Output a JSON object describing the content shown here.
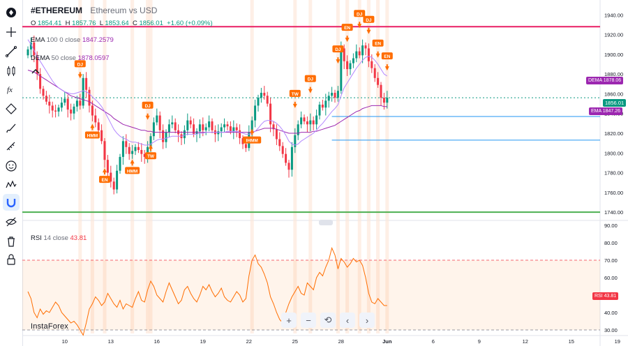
{
  "header": {
    "symbol": "#ETHEREUM",
    "description": "Ethereum vs USD",
    "open_label": "O",
    "open": "1854.41",
    "high_label": "H",
    "high": "1857.76",
    "low_label": "L",
    "low": "1853.64",
    "close_label": "C",
    "close": "1856.01",
    "change": "+1.60 (+0.09%)"
  },
  "indicators": {
    "ema": {
      "name": "EMA",
      "params": "100 0 close",
      "value": "1847.2579",
      "tag": "EMA",
      "tag_value": "1847.26"
    },
    "dema": {
      "name": "DEMA",
      "params": "50 close",
      "value": "1878.0597",
      "tag": "DEMA",
      "tag_value": "1878.06"
    },
    "rsi": {
      "name": "RSI",
      "params": "14 close",
      "value": "43.81",
      "tag": "RSI",
      "tag_value": "43.81"
    }
  },
  "price_tag": "1856.01",
  "watermark": "InstaForex",
  "navigation": {
    "zoom_in": "+",
    "zoom_out": "−",
    "reset": "⟲",
    "scroll_left": "‹",
    "scroll_right": "›"
  },
  "toolbar_icons": [
    "logo-icon",
    "crosshair-icon",
    "trend-line-icon",
    "candles-icon",
    "fx-icon",
    "node-icon",
    "brush-icon",
    "measure-icon",
    "emoji-icon",
    "pattern-icon",
    "magnet-icon",
    "eye-off-icon",
    "trash-icon",
    "lock-icon"
  ],
  "colors": {
    "up": "#089981",
    "down": "#f23645",
    "ema": "#9c27b0",
    "dema": "#b388ff",
    "pink_line": "#e91e63",
    "green_line": "#4caf50",
    "blue_line": "#2196f3",
    "rsi": "#ff6d00",
    "marker": "#ff6d00"
  },
  "chart_data": [
    {
      "type": "candlestick",
      "symbol": "#ETHEREUM",
      "y_ticks": [
        1740,
        1760,
        1780,
        1800,
        1820,
        1840,
        1860,
        1880,
        1900,
        1920,
        1940
      ],
      "y_tick_labels": [
        "1740.00",
        "1760.00",
        "1780.00",
        "1800.00",
        "1820.00",
        "1840.00",
        "1860.00",
        "1880.00",
        "1900.00",
        "1920.00",
        "1940.00"
      ],
      "ylim": [
        1733,
        1948
      ],
      "x_tick_labels": [
        "10",
        "13",
        "16",
        "19",
        "22",
        "25",
        "28",
        "Jun",
        "6",
        "9",
        "12",
        "15",
        "19"
      ],
      "x_tick_index": [
        12,
        27,
        42,
        57,
        72,
        87,
        102,
        117,
        132,
        147,
        162,
        177,
        192
      ],
      "close": [
        1905,
        1912,
        1899,
        1880,
        1865,
        1858,
        1852,
        1848,
        1843,
        1842,
        1846,
        1851,
        1855,
        1844,
        1840,
        1847,
        1853,
        1848,
        1876,
        1864,
        1848,
        1838,
        1831,
        1823,
        1812,
        1793,
        1780,
        1771,
        1763,
        1782,
        1796,
        1812,
        1806,
        1799,
        1802,
        1806,
        1803,
        1799,
        1796,
        1806,
        1817,
        1831,
        1838,
        1823,
        1811,
        1821,
        1829,
        1831,
        1823,
        1819,
        1815,
        1823,
        1833,
        1829,
        1819,
        1822,
        1829,
        1823,
        1826,
        1832,
        1823,
        1819,
        1822,
        1826,
        1829,
        1827,
        1822,
        1826,
        1823,
        1815,
        1809,
        1805,
        1821,
        1833,
        1848,
        1856,
        1861,
        1858,
        1850,
        1829,
        1824,
        1814,
        1807,
        1799,
        1790,
        1783,
        1806,
        1818,
        1829,
        1836,
        1832,
        1829,
        1833,
        1829,
        1838,
        1849,
        1846,
        1853,
        1858,
        1861,
        1856,
        1863,
        1906,
        1893,
        1885,
        1891,
        1896,
        1903,
        1899,
        1909,
        1906,
        1893,
        1886,
        1876,
        1869,
        1856,
        1851,
        1856
      ],
      "ema100": [
        1884,
        1883,
        1882,
        1880,
        1878,
        1876,
        1874,
        1872,
        1870,
        1868,
        1866,
        1864,
        1862,
        1860,
        1858,
        1857,
        1856,
        1855,
        1854,
        1853,
        1852,
        1850,
        1848,
        1846,
        1844,
        1842,
        1840,
        1838,
        1835,
        1833,
        1831,
        1829,
        1828,
        1827,
        1826,
        1825,
        1824,
        1823,
        1823,
        1822,
        1822,
        1821,
        1821,
        1821,
        1821,
        1821,
        1821,
        1821,
        1821,
        1821,
        1821,
        1821,
        1821,
        1821,
        1821,
        1821,
        1821,
        1821,
        1821,
        1821,
        1821,
        1821,
        1821,
        1821,
        1821,
        1821,
        1821,
        1821,
        1821,
        1821,
        1821,
        1821,
        1821,
        1821,
        1822,
        1823,
        1824,
        1825,
        1825,
        1825,
        1825,
        1824,
        1823,
        1822,
        1821,
        1820,
        1820,
        1820,
        1820,
        1821,
        1821,
        1821,
        1821,
        1822,
        1822,
        1823,
        1824,
        1825,
        1826,
        1827,
        1828,
        1830,
        1832,
        1834,
        1836,
        1838,
        1840,
        1842,
        1843,
        1845,
        1846,
        1847,
        1848,
        1848,
        1848,
        1848,
        1847,
        1847
      ],
      "dema50": [
        1915,
        1910,
        1904,
        1898,
        1893,
        1888,
        1883,
        1878,
        1873,
        1869,
        1866,
        1864,
        1862,
        1861,
        1860,
        1860,
        1861,
        1862,
        1863,
        1862,
        1860,
        1857,
        1854,
        1851,
        1847,
        1842,
        1836,
        1830,
        1824,
        1820,
        1817,
        1815,
        1814,
        1812,
        1811,
        1811,
        1810,
        1809,
        1808,
        1808,
        1809,
        1811,
        1813,
        1814,
        1814,
        1815,
        1816,
        1817,
        1817,
        1817,
        1817,
        1818,
        1819,
        1819,
        1819,
        1819,
        1820,
        1820,
        1821,
        1821,
        1821,
        1821,
        1821,
        1821,
        1821,
        1822,
        1822,
        1822,
        1822,
        1821,
        1820,
        1819,
        1819,
        1820,
        1822,
        1825,
        1829,
        1832,
        1833,
        1833,
        1832,
        1830,
        1827,
        1823,
        1818,
        1812,
        1809,
        1808,
        1809,
        1812,
        1814,
        1816,
        1818,
        1820,
        1823,
        1827,
        1830,
        1834,
        1838,
        1842,
        1845,
        1849,
        1858,
        1866,
        1871,
        1876,
        1881,
        1886,
        1890,
        1894,
        1897,
        1898,
        1897,
        1894,
        1890,
        1885,
        1880,
        1878
      ]
    },
    {
      "type": "line",
      "name": "RSI",
      "y_ticks": [
        30,
        40,
        50,
        60,
        70,
        80,
        90
      ],
      "y_tick_labels": [
        "30.00",
        "40.00",
        "50.00",
        "60.00",
        "70.00",
        "80.00",
        "90.00"
      ],
      "ylim": [
        28,
        92
      ],
      "bands": [
        30,
        70
      ],
      "values": [
        52,
        48,
        40,
        37,
        42,
        39,
        41,
        40,
        43,
        46,
        44,
        40,
        38,
        36,
        34,
        35,
        33,
        30,
        27,
        34,
        42,
        45,
        49,
        47,
        44,
        46,
        51,
        48,
        45,
        43,
        47,
        42,
        45,
        44,
        43,
        48,
        52,
        47,
        46,
        53,
        58,
        55,
        50,
        48,
        46,
        52,
        57,
        53,
        49,
        45,
        47,
        53,
        55,
        51,
        48,
        46,
        50,
        55,
        53,
        56,
        52,
        49,
        51,
        54,
        49,
        47,
        46,
        49,
        52,
        50,
        46,
        48,
        61,
        70,
        73,
        68,
        66,
        62,
        57,
        49,
        45,
        40,
        36,
        34,
        40,
        45,
        49,
        52,
        55,
        51,
        50,
        57,
        55,
        53,
        60,
        63,
        61,
        66,
        70,
        77,
        73,
        65,
        71,
        69,
        66,
        68,
        71,
        69,
        70,
        67,
        60,
        51,
        46,
        45,
        48,
        46,
        44,
        44
      ]
    }
  ],
  "events": [
    {
      "i": 17,
      "label": "DJ",
      "dir": "down"
    },
    {
      "i": 21,
      "label": "HMM",
      "dir": "up"
    },
    {
      "i": 25,
      "label": "EN",
      "dir": "up"
    },
    {
      "i": 34,
      "label": "HMM",
      "dir": "up"
    },
    {
      "i": 39,
      "label": "DJ",
      "dir": "down"
    },
    {
      "i": 40,
      "label": "TW",
      "dir": "up"
    },
    {
      "i": 73,
      "label": "IHMM",
      "dir": "up"
    },
    {
      "i": 87,
      "label": "TW",
      "dir": "down"
    },
    {
      "i": 92,
      "label": "DJ",
      "dir": "down"
    },
    {
      "i": 101,
      "label": "DJ",
      "dir": "down"
    },
    {
      "i": 104,
      "label": "EN",
      "dir": "down"
    },
    {
      "i": 108,
      "label": "DJ",
      "dir": "down"
    },
    {
      "i": 111,
      "label": "DJ",
      "dir": "down"
    },
    {
      "i": 114,
      "label": "EN",
      "dir": "down"
    },
    {
      "i": 117,
      "label": "EN",
      "dir": "down"
    }
  ],
  "levels": {
    "pink": 1928,
    "green": 1740,
    "blue1": 1837,
    "blue2": 1813
  }
}
